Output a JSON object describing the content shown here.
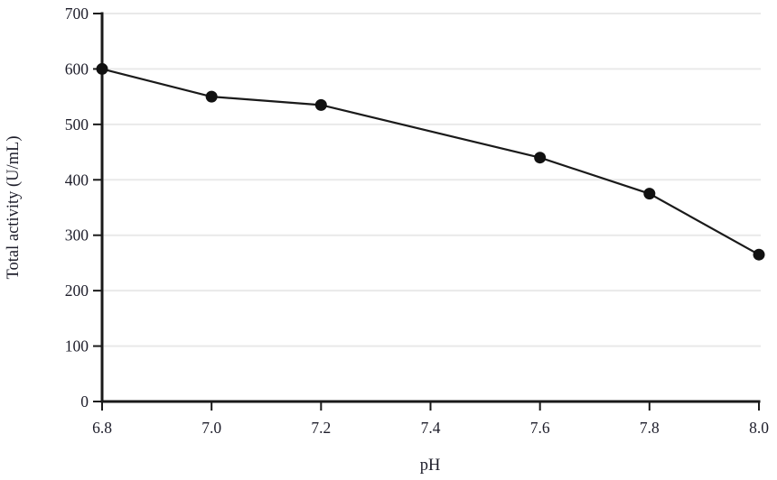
{
  "chart_data": {
    "type": "line",
    "title": "",
    "xlabel": "pH",
    "ylabel": "Total activity (U/mL)",
    "x": [
      6.8,
      7.0,
      7.2,
      7.6,
      7.8,
      8.0
    ],
    "series": [
      {
        "name": "Total activity",
        "values": [
          600,
          550,
          535,
          440,
          375,
          265
        ]
      }
    ],
    "xlim": [
      6.8,
      8.0
    ],
    "ylim": [
      0,
      700
    ],
    "x_ticks": [
      "6.8",
      "7.0",
      "7.2",
      "7.4",
      "7.6",
      "7.8",
      "8.0"
    ],
    "y_ticks": [
      "0",
      "100",
      "200",
      "300",
      "400",
      "500",
      "600",
      "700"
    ],
    "grid": "horizontal-light",
    "legend": "none",
    "marker": "filled-circle",
    "marker_size_px": 13,
    "colors": {
      "line": "#1a1a1a",
      "marker": "#111111",
      "axis": "#1a1a1a",
      "gridline": "#e9e9e9",
      "text": "#1d1d2a",
      "background": "#ffffff"
    }
  }
}
